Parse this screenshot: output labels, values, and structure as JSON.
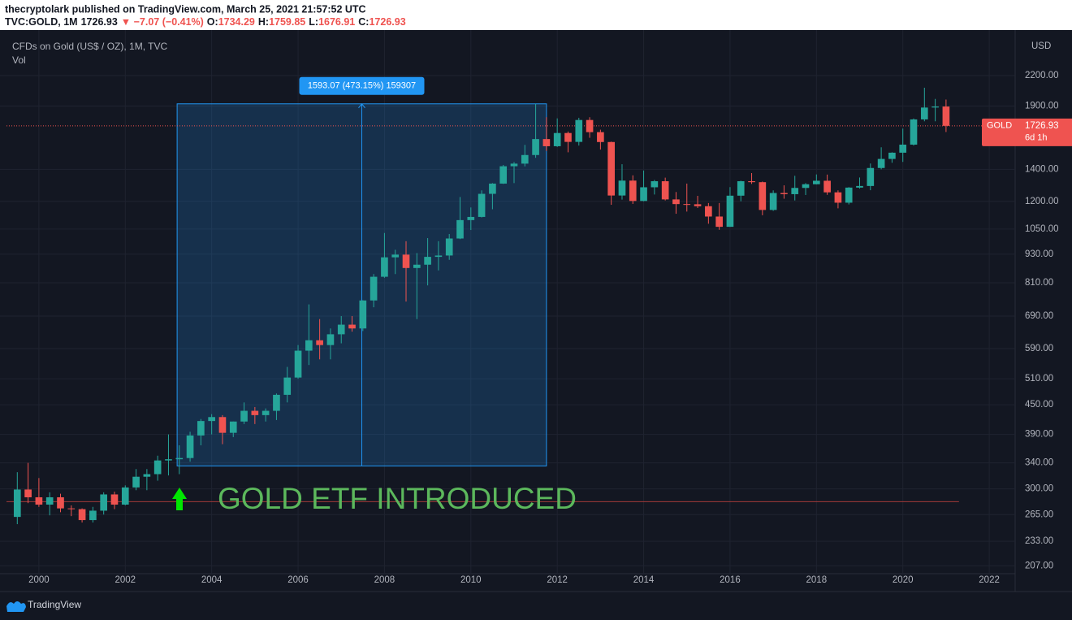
{
  "header": {
    "line1": "thecryptolark published on TradingView.com, March 25, 2021 21:57:52 UTC",
    "line2": [
      {
        "text": "TVC:GOLD, 1M",
        "color": "#131722"
      },
      {
        "text": "1726.93",
        "color": "#131722"
      },
      {
        "text": "▼ −7.07 (−0.41%)",
        "color": "#ef5350"
      },
      {
        "text": "O:",
        "color": "#131722"
      },
      {
        "text": "1734.29",
        "color": "#ef5350"
      },
      {
        "text": "H:",
        "color": "#131722"
      },
      {
        "text": "1759.85",
        "color": "#ef5350"
      },
      {
        "text": "L:",
        "color": "#131722"
      },
      {
        "text": "1676.91",
        "color": "#ef5350"
      },
      {
        "text": "C:",
        "color": "#131722"
      },
      {
        "text": "1726.93",
        "color": "#ef5350"
      }
    ]
  },
  "footer": {
    "brand": "TradingView"
  },
  "chart_data": {
    "type": "candlestick",
    "legend": [
      "CFDs on Gold (US$ / OZ), 1M, TVC",
      "Vol"
    ],
    "y_unit": "USD",
    "log_scale": true,
    "grid": true,
    "up_color": "#26a69a",
    "down_color": "#ef5350",
    "xlim": [
      1999.25,
      2022.6
    ],
    "xticks": [
      2000,
      2002,
      2004,
      2006,
      2008,
      2010,
      2012,
      2014,
      2016,
      2018,
      2020,
      2022
    ],
    "ylim": [
      204,
      2708
    ],
    "yticks": [
      {
        "value": 207,
        "label": "207.00"
      },
      {
        "value": 233,
        "label": "233.00"
      },
      {
        "value": 265,
        "label": "265.00"
      },
      {
        "value": 300,
        "label": "300.00"
      },
      {
        "value": 340,
        "label": "340.00"
      },
      {
        "value": 390,
        "label": "390.00"
      },
      {
        "value": 450,
        "label": "450.00"
      },
      {
        "value": 510,
        "label": "510.00"
      },
      {
        "value": 590,
        "label": "590.00"
      },
      {
        "value": 690,
        "label": "690.00"
      },
      {
        "value": 810,
        "label": "810.00"
      },
      {
        "value": 930,
        "label": "930.00"
      },
      {
        "value": 1050,
        "label": "1050.00"
      },
      {
        "value": 1200,
        "label": "1200.00"
      },
      {
        "value": 1400,
        "label": "1400.00"
      },
      {
        "value": 1900,
        "label": "1900.00"
      },
      {
        "value": 2200,
        "label": "2200.00"
      }
    ],
    "x": [
      1999.5,
      1999.75,
      2000,
      2000.25,
      2000.5,
      2000.75,
      2001,
      2001.25,
      2001.5,
      2001.75,
      2002,
      2002.25,
      2002.5,
      2002.75,
      2003,
      2003.25,
      2003.5,
      2003.75,
      2004,
      2004.25,
      2004.5,
      2004.75,
      2005,
      2005.25,
      2005.5,
      2005.75,
      2006,
      2006.25,
      2006.5,
      2006.75,
      2007,
      2007.25,
      2007.5,
      2007.75,
      2008,
      2008.25,
      2008.5,
      2008.75,
      2009,
      2009.25,
      2009.5,
      2009.75,
      2010,
      2010.25,
      2010.5,
      2010.75,
      2011,
      2011.25,
      2011.5,
      2011.75,
      2012,
      2012.25,
      2012.5,
      2012.75,
      2013,
      2013.25,
      2013.5,
      2013.75,
      2014,
      2014.25,
      2014.5,
      2014.75,
      2015,
      2015.25,
      2015.5,
      2015.75,
      2016,
      2016.25,
      2016.5,
      2016.75,
      2017,
      2017.25,
      2017.5,
      2017.75,
      2018,
      2018.25,
      2018.5,
      2018.75,
      2019,
      2019.25,
      2019.5,
      2019.75,
      2020,
      2020.25,
      2020.5,
      2020.75,
      2021
    ],
    "open": [
      262,
      299,
      288,
      278,
      288,
      273,
      272,
      258,
      270,
      292,
      278,
      302,
      318,
      322,
      344,
      346,
      348,
      388,
      416,
      424,
      393,
      415,
      437,
      428,
      437,
      472,
      513,
      584,
      614,
      600,
      632,
      662,
      650,
      744,
      834,
      916,
      928,
      870,
      884,
      918,
      924,
      1003,
      1096,
      1113,
      1244,
      1307,
      1421,
      1439,
      1500,
      1620,
      1565,
      1668,
      1598,
      1776,
      1675,
      1597,
      1234,
      1326,
      1202,
      1284,
      1322,
      1211,
      1184,
      1183,
      1172,
      1115,
      1061,
      1233,
      1322,
      1316,
      1151,
      1249,
      1242,
      1280,
      1303,
      1325,
      1253,
      1192,
      1282,
      1292,
      1409,
      1472,
      1517,
      1577,
      1781,
      1886,
      1895
    ],
    "high": [
      325,
      340,
      316,
      295,
      293,
      277,
      273,
      275,
      295,
      296,
      305,
      330,
      330,
      352,
      390,
      370,
      395,
      420,
      430,
      428,
      415,
      455,
      445,
      442,
      475,
      540,
      600,
      730,
      680,
      650,
      690,
      690,
      745,
      845,
      1030,
      950,
      990,
      935,
      1005,
      990,
      1025,
      1225,
      1165,
      1265,
      1310,
      1430,
      1450,
      1575,
      1920,
      1800,
      1790,
      1680,
      1795,
      1800,
      1695,
      1600,
      1435,
      1360,
      1392,
      1330,
      1345,
      1255,
      1307,
      1232,
      1190,
      1190,
      1285,
      1325,
      1375,
      1320,
      1265,
      1296,
      1357,
      1310,
      1366,
      1365,
      1265,
      1285,
      1346,
      1440,
      1557,
      1520,
      1704,
      1789,
      2075,
      1966,
      1960
    ],
    "low": [
      253,
      280,
      275,
      264,
      268,
      263,
      255,
      255,
      265,
      272,
      277,
      298,
      298,
      312,
      320,
      322,
      342,
      370,
      390,
      372,
      385,
      410,
      410,
      415,
      418,
      455,
      510,
      545,
      560,
      560,
      605,
      640,
      642,
      720,
      830,
      845,
      740,
      680,
      800,
      860,
      905,
      1000,
      1045,
      1110,
      1155,
      1305,
      1310,
      1420,
      1480,
      1530,
      1560,
      1520,
      1570,
      1630,
      1540,
      1180,
      1210,
      1185,
      1200,
      1240,
      1205,
      1130,
      1142,
      1162,
      1077,
      1046,
      1061,
      1200,
      1305,
      1122,
      1146,
      1215,
      1205,
      1237,
      1302,
      1238,
      1160,
      1182,
      1276,
      1266,
      1400,
      1445,
      1451,
      1570,
      1765,
      1765,
      1676
    ],
    "close": [
      299,
      288,
      278,
      288,
      273,
      272,
      258,
      270,
      292,
      278,
      302,
      318,
      322,
      344,
      346,
      348,
      388,
      416,
      424,
      393,
      415,
      437,
      428,
      437,
      472,
      513,
      584,
      614,
      600,
      632,
      662,
      650,
      744,
      834,
      916,
      928,
      870,
      884,
      918,
      924,
      1003,
      1096,
      1113,
      1244,
      1307,
      1421,
      1439,
      1500,
      1620,
      1565,
      1668,
      1598,
      1776,
      1675,
      1597,
      1234,
      1326,
      1202,
      1284,
      1322,
      1211,
      1184,
      1183,
      1172,
      1115,
      1061,
      1233,
      1322,
      1316,
      1151,
      1249,
      1242,
      1280,
      1303,
      1325,
      1253,
      1192,
      1282,
      1292,
      1409,
      1472,
      1517,
      1577,
      1781,
      1886,
      1895,
      1727
    ],
    "measure": {
      "label": "1593.07 (473.15%) 159307",
      "x": [
        2003.2,
        2011.75
      ],
      "y": [
        335,
        1920
      ],
      "color": "#2196f3"
    },
    "annotation": {
      "text": "GOLD ETF INTRODUCED",
      "color": "#5cb85c"
    },
    "hline": {
      "value": 282,
      "x_end": 2021.3,
      "color": "#a33a3a"
    },
    "price_label": {
      "symbol": "GOLD",
      "value": 1726.93,
      "countdown": "6d 1h",
      "color": "#ef5350"
    }
  }
}
